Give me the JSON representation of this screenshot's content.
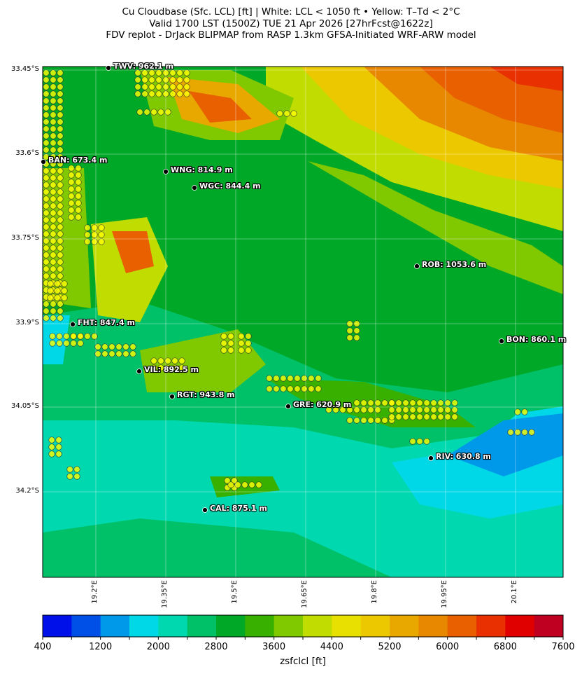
{
  "title": {
    "line1": "Cu Cloudbase (Sfc. LCL) [ft]  |  White: LCL < 1050 ft • Yellow: T–Td < 2°C",
    "line2": "Valid 1700 LST (1500Z) TUE 21 Apr 2026 [27hrFcst@1622z]",
    "line3": "FDV replot - DrJack BLIPMAP from RASP 1.3km GFSA-Initiated WRF-ARW model"
  },
  "map": {
    "lat_ticks": [
      "33.45°S",
      "33.6°S",
      "33.75°S",
      "33.9°S",
      "34.05°S",
      "34.2°S"
    ],
    "lon_ticks": [
      "19.2°E",
      "19.35°E",
      "19.5°E",
      "19.65°E",
      "19.8°E",
      "19.95°E",
      "20.1°E"
    ],
    "criterion_marker_color": "#ffff00",
    "stations": [
      {
        "label": "TWV: 962.1 m"
      },
      {
        "label": "BAN: 673.4 m"
      },
      {
        "label": "WNG: 814.9 m"
      },
      {
        "label": "WGC: 844.4 m"
      },
      {
        "label": "ROB: 1053.6 m"
      },
      {
        "label": "FHT: 847.4 m"
      },
      {
        "label": "BON: 860.1 m"
      },
      {
        "label": "VIL: 892.5 m"
      },
      {
        "label": "RGT: 943.8 m"
      },
      {
        "label": "GRE: 620.9 m"
      },
      {
        "label": "RIV: 630.8 m"
      },
      {
        "label": "CAL: 875.1 m"
      }
    ]
  },
  "colorbar": {
    "label": "zsfclcl [ft]",
    "min": 400,
    "max": 7600,
    "step": 400,
    "tick_labels": [
      "400",
      "1200",
      "2000",
      "2800",
      "3600",
      "4400",
      "5200",
      "6000",
      "6800",
      "7600"
    ],
    "colors": [
      "#0010e8",
      "#0050e8",
      "#0098e8",
      "#00d8e8",
      "#00d8b0",
      "#00c068",
      "#00a828",
      "#38b000",
      "#80c800",
      "#c0dc00",
      "#e8e000",
      "#ecc800",
      "#e8a800",
      "#e88800",
      "#e86000",
      "#e83000",
      "#e00000",
      "#c00020"
    ]
  }
}
